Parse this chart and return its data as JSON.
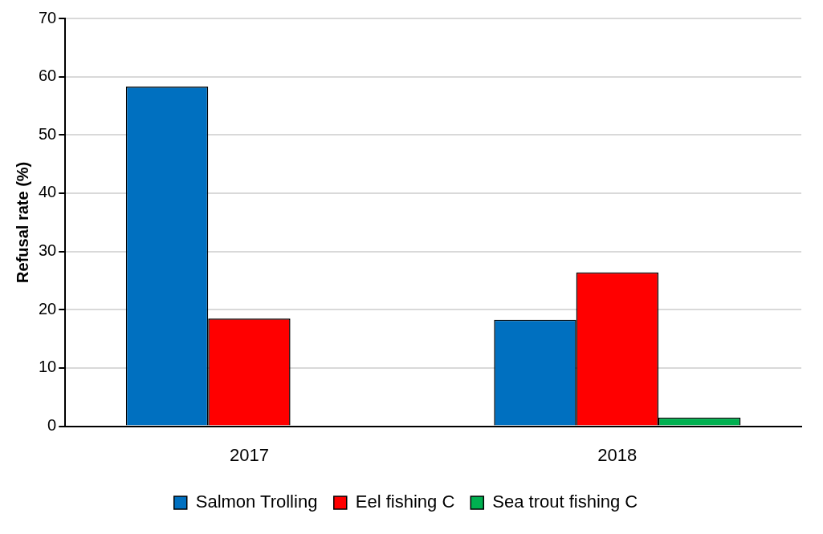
{
  "chart_data": {
    "type": "bar",
    "ylabel": "Refusal rate (%)",
    "categories": [
      "2017",
      "2018"
    ],
    "series": [
      {
        "name": "Salmon Trolling",
        "color": "#0070c0",
        "values": [
          58.3,
          18.3
        ]
      },
      {
        "name": "Eel fishing C",
        "color": "#ff0000",
        "values": [
          18.5,
          26.4
        ]
      },
      {
        "name": "Sea trout fishing C",
        "color": "#00b050",
        "values": [
          null,
          1.5
        ]
      }
    ],
    "ylim": [
      0,
      70
    ],
    "yticks": [
      0,
      10,
      20,
      30,
      40,
      50,
      60,
      70
    ],
    "grid": "y",
    "legend": "bottom"
  }
}
